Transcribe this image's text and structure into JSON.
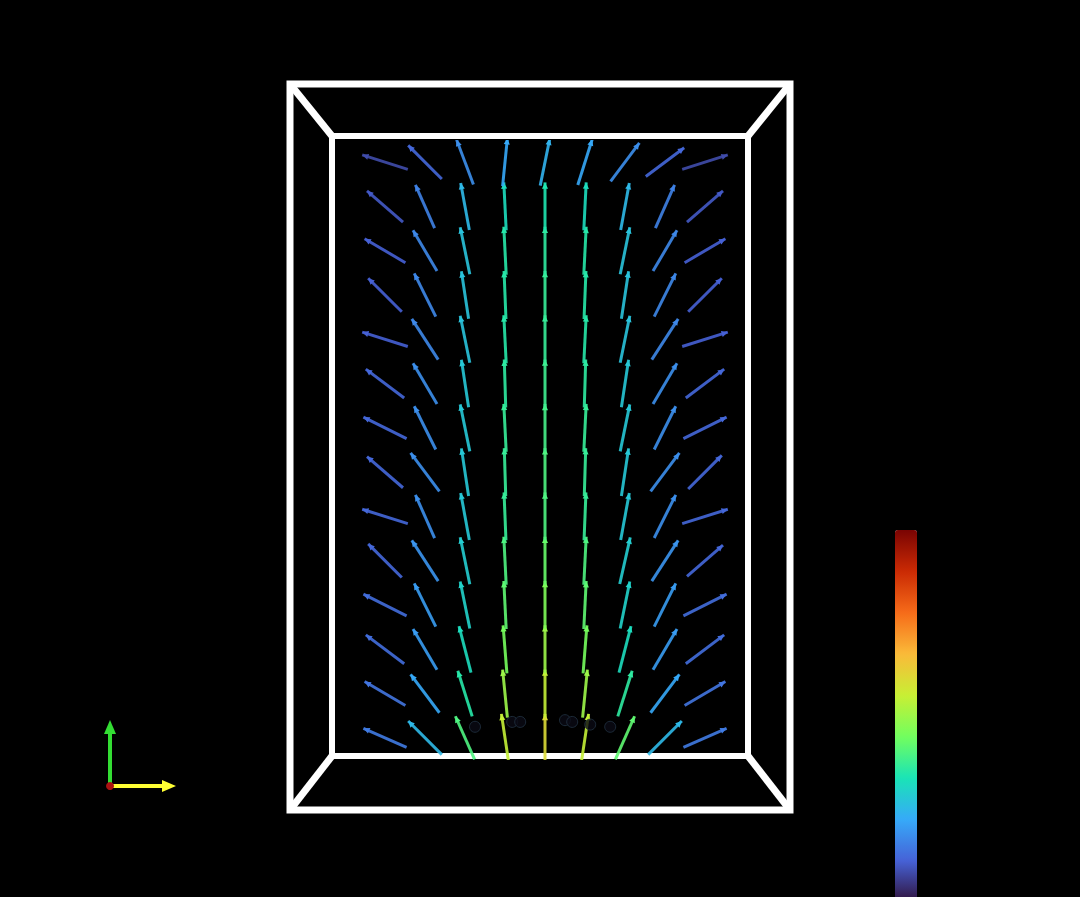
{
  "chart_data": {
    "type": "quiver",
    "tick_labels": false,
    "xlim": [
      0,
      10
    ],
    "ylim": [
      0,
      14
    ],
    "colorbar": {
      "range": [
        0,
        1
      ]
    },
    "series": [
      {
        "type": "quiver",
        "values": [
          [
            1,
            0.5,
            -0.9,
            0.4,
            0.15
          ],
          [
            2,
            0.5,
            -0.7,
            0.7,
            0.25
          ],
          [
            3,
            0.5,
            -0.4,
            0.9,
            0.4
          ],
          [
            4,
            0.5,
            -0.15,
            1,
            0.55
          ],
          [
            5,
            0.5,
            0,
            1,
            0.6
          ],
          [
            6,
            0.5,
            0.15,
            1,
            0.55
          ],
          [
            7,
            0.5,
            0.4,
            0.9,
            0.42
          ],
          [
            8,
            0.5,
            0.7,
            0.7,
            0.25
          ],
          [
            9,
            0.5,
            0.9,
            0.4,
            0.15
          ],
          [
            1,
            1.5,
            -0.85,
            0.5,
            0.14
          ],
          [
            2,
            1.5,
            -0.6,
            0.8,
            0.22
          ],
          [
            3,
            1.5,
            -0.3,
            0.95,
            0.35
          ],
          [
            4,
            1.5,
            -0.1,
            1,
            0.5
          ],
          [
            5,
            1.5,
            0,
            1,
            0.55
          ],
          [
            6,
            1.5,
            0.1,
            1,
            0.5
          ],
          [
            7,
            1.5,
            0.3,
            0.95,
            0.36
          ],
          [
            8,
            1.5,
            0.6,
            0.8,
            0.22
          ],
          [
            9,
            1.5,
            0.85,
            0.5,
            0.14
          ],
          [
            1,
            2.5,
            -0.8,
            0.6,
            0.13
          ],
          [
            2,
            2.5,
            -0.5,
            0.85,
            0.2
          ],
          [
            3,
            2.5,
            -0.25,
            0.97,
            0.32
          ],
          [
            4,
            2.5,
            -0.08,
            1,
            0.45
          ],
          [
            5,
            2.5,
            0,
            1,
            0.5
          ],
          [
            6,
            2.5,
            0.08,
            1,
            0.45
          ],
          [
            7,
            2.5,
            0.25,
            0.97,
            0.32
          ],
          [
            8,
            2.5,
            0.5,
            0.85,
            0.2
          ],
          [
            9,
            2.5,
            0.8,
            0.6,
            0.13
          ],
          [
            1,
            3.5,
            -0.9,
            0.45,
            0.13
          ],
          [
            2,
            3.5,
            -0.45,
            0.9,
            0.2
          ],
          [
            3,
            3.5,
            -0.2,
            0.98,
            0.3
          ],
          [
            4,
            3.5,
            -0.05,
            1,
            0.42
          ],
          [
            5,
            3.5,
            0,
            1,
            0.46
          ],
          [
            6,
            3.5,
            0.05,
            1,
            0.42
          ],
          [
            7,
            3.5,
            0.2,
            0.98,
            0.3
          ],
          [
            8,
            3.5,
            0.45,
            0.9,
            0.2
          ],
          [
            9,
            3.5,
            0.9,
            0.45,
            0.13
          ],
          [
            1,
            4.5,
            -0.7,
            0.7,
            0.12
          ],
          [
            2,
            4.5,
            -0.55,
            0.85,
            0.19
          ],
          [
            3,
            4.5,
            -0.2,
            0.98,
            0.29
          ],
          [
            4,
            4.5,
            -0.05,
            1,
            0.4
          ],
          [
            5,
            4.5,
            0,
            1,
            0.43
          ],
          [
            6,
            4.5,
            0.05,
            1,
            0.4
          ],
          [
            7,
            4.5,
            0.22,
            0.97,
            0.29
          ],
          [
            8,
            4.5,
            0.55,
            0.85,
            0.19
          ],
          [
            9,
            4.5,
            0.75,
            0.65,
            0.12
          ],
          [
            1,
            5.5,
            -0.95,
            0.3,
            0.12
          ],
          [
            2,
            5.5,
            -0.4,
            0.9,
            0.18
          ],
          [
            3,
            5.5,
            -0.18,
            0.98,
            0.28
          ],
          [
            4,
            5.5,
            -0.04,
            1,
            0.37
          ],
          [
            5,
            5.5,
            0,
            1,
            0.4
          ],
          [
            6,
            5.5,
            0.04,
            1,
            0.37
          ],
          [
            7,
            5.5,
            0.18,
            0.98,
            0.28
          ],
          [
            8,
            5.5,
            0.45,
            0.9,
            0.18
          ],
          [
            9,
            5.5,
            0.95,
            0.3,
            0.12
          ],
          [
            1,
            6.5,
            -0.75,
            0.65,
            0.12
          ],
          [
            2,
            6.5,
            -0.6,
            0.8,
            0.18
          ],
          [
            3,
            6.5,
            -0.15,
            0.99,
            0.28
          ],
          [
            4,
            6.5,
            -0.03,
            1,
            0.37
          ],
          [
            5,
            6.5,
            0,
            1,
            0.4
          ],
          [
            6,
            6.5,
            0.03,
            1,
            0.37
          ],
          [
            7,
            6.5,
            0.15,
            0.99,
            0.28
          ],
          [
            8,
            6.5,
            0.6,
            0.8,
            0.18
          ],
          [
            9,
            6.5,
            0.7,
            0.7,
            0.12
          ],
          [
            1,
            7.5,
            -0.9,
            0.45,
            0.12
          ],
          [
            2,
            7.5,
            -0.45,
            0.9,
            0.18
          ],
          [
            3,
            7.5,
            -0.2,
            0.98,
            0.28
          ],
          [
            4,
            7.5,
            -0.05,
            1,
            0.37
          ],
          [
            5,
            7.5,
            0,
            1,
            0.39
          ],
          [
            6,
            7.5,
            0.05,
            1,
            0.37
          ],
          [
            7,
            7.5,
            0.2,
            0.98,
            0.28
          ],
          [
            8,
            7.5,
            0.45,
            0.9,
            0.18
          ],
          [
            9,
            7.5,
            0.9,
            0.45,
            0.12
          ],
          [
            1,
            8.5,
            -0.8,
            0.6,
            0.12
          ],
          [
            2,
            8.5,
            -0.5,
            0.85,
            0.18
          ],
          [
            3,
            8.5,
            -0.15,
            0.99,
            0.28
          ],
          [
            4,
            8.5,
            -0.03,
            1,
            0.36
          ],
          [
            5,
            8.5,
            0,
            1,
            0.38
          ],
          [
            6,
            8.5,
            0.03,
            1,
            0.36
          ],
          [
            7,
            8.5,
            0.15,
            0.99,
            0.28
          ],
          [
            8,
            8.5,
            0.5,
            0.85,
            0.18
          ],
          [
            9,
            8.5,
            0.8,
            0.6,
            0.12
          ],
          [
            1,
            9.5,
            -0.95,
            0.3,
            0.11
          ],
          [
            2,
            9.5,
            -0.55,
            0.85,
            0.17
          ],
          [
            3,
            9.5,
            -0.2,
            0.98,
            0.27
          ],
          [
            4,
            9.5,
            -0.05,
            1,
            0.35
          ],
          [
            5,
            9.5,
            0,
            1,
            0.37
          ],
          [
            6,
            9.5,
            0.05,
            1,
            0.35
          ],
          [
            7,
            9.5,
            0.2,
            0.98,
            0.27
          ],
          [
            8,
            9.5,
            0.55,
            0.85,
            0.17
          ],
          [
            9,
            9.5,
            0.95,
            0.3,
            0.11
          ],
          [
            1,
            10.5,
            -0.7,
            0.7,
            0.11
          ],
          [
            2,
            10.5,
            -0.45,
            0.9,
            0.17
          ],
          [
            3,
            10.5,
            -0.15,
            0.99,
            0.27
          ],
          [
            4,
            10.5,
            -0.04,
            1,
            0.35
          ],
          [
            5,
            10.5,
            0,
            1,
            0.37
          ],
          [
            6,
            10.5,
            0.04,
            1,
            0.35
          ],
          [
            7,
            10.5,
            0.15,
            0.99,
            0.27
          ],
          [
            8,
            10.5,
            0.45,
            0.9,
            0.17
          ],
          [
            9,
            10.5,
            0.7,
            0.7,
            0.11
          ],
          [
            1,
            11.5,
            -0.85,
            0.5,
            0.11
          ],
          [
            2,
            11.5,
            -0.5,
            0.85,
            0.17
          ],
          [
            3,
            11.5,
            -0.2,
            0.98,
            0.27
          ],
          [
            4,
            11.5,
            -0.05,
            1,
            0.35
          ],
          [
            5,
            11.5,
            0,
            1,
            0.36
          ],
          [
            6,
            11.5,
            0.05,
            1,
            0.35
          ],
          [
            7,
            11.5,
            0.2,
            0.98,
            0.27
          ],
          [
            8,
            11.5,
            0.5,
            0.85,
            0.17
          ],
          [
            9,
            11.5,
            0.85,
            0.5,
            0.11
          ],
          [
            1,
            12.5,
            -0.75,
            0.65,
            0.1
          ],
          [
            2,
            12.5,
            -0.4,
            0.9,
            0.16
          ],
          [
            3,
            12.5,
            -0.18,
            0.98,
            0.25
          ],
          [
            4,
            12.5,
            -0.05,
            1,
            0.32
          ],
          [
            5,
            12.5,
            0,
            1,
            0.34
          ],
          [
            6,
            12.5,
            0.05,
            1,
            0.32
          ],
          [
            7,
            12.5,
            0.18,
            0.98,
            0.25
          ],
          [
            8,
            12.5,
            0.4,
            0.9,
            0.16
          ],
          [
            9,
            12.5,
            0.75,
            0.65,
            0.1
          ],
          [
            1,
            13.5,
            -0.95,
            0.3,
            0.08
          ],
          [
            2,
            13.5,
            -0.7,
            0.7,
            0.12
          ],
          [
            3,
            13.5,
            -0.35,
            0.93,
            0.18
          ],
          [
            4,
            13.5,
            0.1,
            1,
            0.22
          ],
          [
            5,
            13.5,
            0.2,
            0.98,
            0.24
          ],
          [
            6,
            13.5,
            0.3,
            0.95,
            0.22
          ],
          [
            7,
            13.5,
            0.6,
            0.8,
            0.18
          ],
          [
            8,
            13.5,
            0.8,
            0.6,
            0.12
          ],
          [
            9,
            13.5,
            0.95,
            0.3,
            0.08
          ]
        ]
      },
      {
        "type": "scatter",
        "color": "#0a0a14",
        "values": [
          [
            3.25,
            0.75
          ],
          [
            4.18,
            0.86
          ],
          [
            4.38,
            0.86
          ],
          [
            5.5,
            0.9
          ],
          [
            5.68,
            0.86
          ],
          [
            6.13,
            0.8
          ],
          [
            6.63,
            0.75
          ]
        ]
      }
    ]
  }
}
